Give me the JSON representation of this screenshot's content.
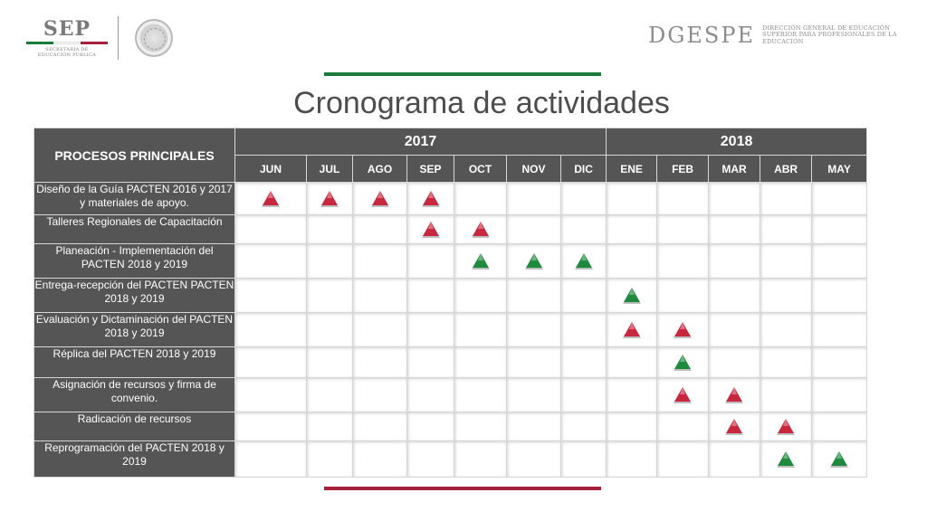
{
  "header": {
    "sep_logo": "SEP",
    "sep_subtitle_1": "SECRETARÍA DE",
    "sep_subtitle_2": "EDUCACIÓN PÚBLICA",
    "dgespe_logo": "DGESPE",
    "dgespe_line_1": "DIRECCIÓN GENERAL DE EDUCACIÓN",
    "dgespe_line_2": "SUPERIOR PARA PROFESIONALES DE LA",
    "dgespe_line_3": "EDUCACIÓN"
  },
  "colors": {
    "green": "#1a7a3a",
    "red": "#a4213c",
    "marker_red": "#c8283f",
    "marker_green": "#1f8a3e",
    "header_gray": "#555555"
  },
  "title": "Cronograma de actividades",
  "table": {
    "process_header": "PROCESOS PRINCIPALES",
    "years": [
      {
        "label": "2017",
        "span": 7
      },
      {
        "label": "2018",
        "span": 5
      }
    ],
    "months": [
      "JUN",
      "JUL",
      "AGO",
      "SEP",
      "OCT",
      "NOV",
      "DIC",
      "ENE",
      "FEB",
      "MAR",
      "ABR",
      "MAY"
    ],
    "rows": [
      {
        "label": "Diseño de la Guía PACTEN 2016 y 2017 y materiales de apoyo.",
        "marks": [
          "red",
          "red",
          "red",
          "red",
          "",
          "",
          "",
          "",
          "",
          "",
          "",
          ""
        ]
      },
      {
        "label": "Talleres Regionales de Capacitación",
        "marks": [
          "",
          "",
          "",
          "red",
          "red",
          "",
          "",
          "",
          "",
          "",
          "",
          ""
        ]
      },
      {
        "label": "Planeación - Implementación del PACTEN 2018 y 2019",
        "marks": [
          "",
          "",
          "",
          "",
          "green",
          "green",
          "green",
          "",
          "",
          "",
          "",
          ""
        ]
      },
      {
        "label": "Entrega-recepción del PACTEN PACTEN 2018 y 2019",
        "marks": [
          "",
          "",
          "",
          "",
          "",
          "",
          "",
          "green",
          "",
          "",
          "",
          ""
        ]
      },
      {
        "label": "Evaluación y Dictaminación del PACTEN 2018 y 2019",
        "marks": [
          "",
          "",
          "",
          "",
          "",
          "",
          "",
          "red",
          "red",
          "",
          "",
          ""
        ]
      },
      {
        "label": "Réplica del PACTEN 2018 y 2019",
        "marks": [
          "",
          "",
          "",
          "",
          "",
          "",
          "",
          "",
          "green",
          "",
          "",
          ""
        ]
      },
      {
        "label": "Asignación de recursos y firma de convenio.",
        "marks": [
          "",
          "",
          "",
          "",
          "",
          "",
          "",
          "",
          "red",
          "red",
          "",
          ""
        ]
      },
      {
        "label": "Radicación de recursos",
        "marks": [
          "",
          "",
          "",
          "",
          "",
          "",
          "",
          "",
          "",
          "red",
          "red",
          ""
        ]
      },
      {
        "label": "Reprogramación del PACTEN 2018 y 2019",
        "marks": [
          "",
          "",
          "",
          "",
          "",
          "",
          "",
          "",
          "",
          "",
          "green",
          "green"
        ]
      }
    ]
  }
}
